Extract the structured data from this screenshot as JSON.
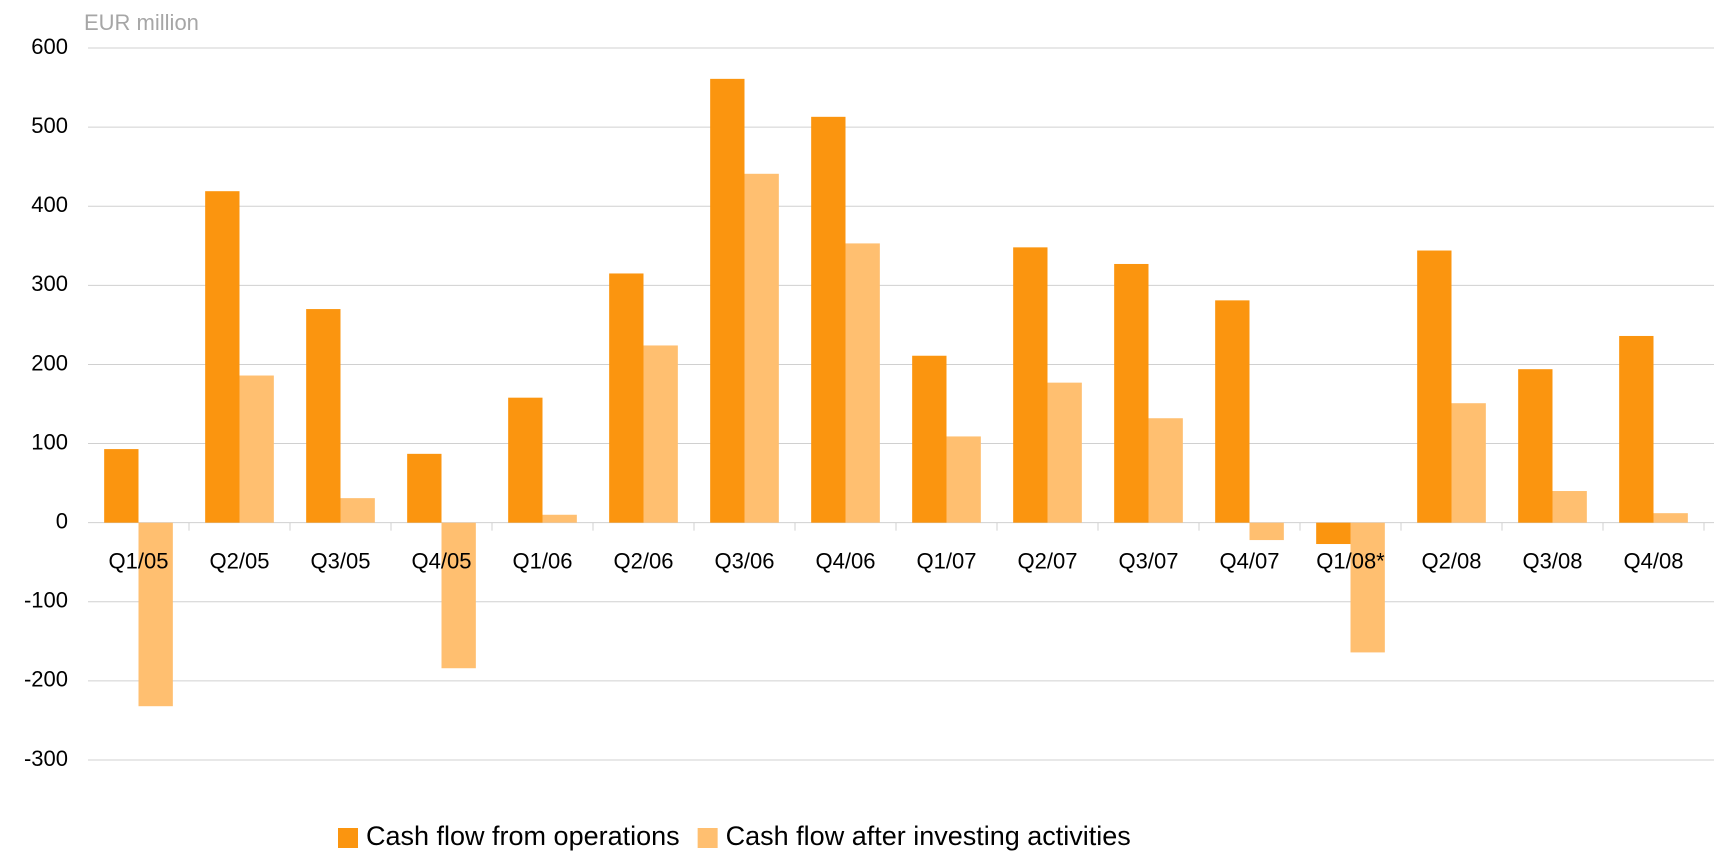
{
  "chart_data": {
    "type": "bar",
    "subtitle": "EUR million",
    "categories": [
      "Q1/05",
      "Q2/05",
      "Q3/05",
      "Q4/05",
      "Q1/06",
      "Q2/06",
      "Q3/06",
      "Q4/06",
      "Q1/07",
      "Q2/07",
      "Q3/07",
      "Q4/07",
      "Q1/08*",
      "Q2/08",
      "Q3/08",
      "Q4/08"
    ],
    "series": [
      {
        "name": "Cash flow from operations",
        "color": "#fb950f",
        "values": [
          93,
          419,
          270,
          87,
          158,
          315,
          561,
          513,
          211,
          348,
          327,
          281,
          -27,
          344,
          194,
          236
        ]
      },
      {
        "name": "Cash flow after investing activities",
        "color": "#ffbf70",
        "values": [
          -232,
          186,
          31,
          -184,
          10,
          224,
          441,
          353,
          109,
          177,
          132,
          -22,
          -164,
          151,
          40,
          12
        ]
      }
    ],
    "ylim": [
      -300,
      600
    ],
    "yticks": [
      -300,
      -200,
      -100,
      0,
      100,
      200,
      300,
      400,
      500,
      600
    ],
    "grid": true,
    "legend": "bottom"
  }
}
